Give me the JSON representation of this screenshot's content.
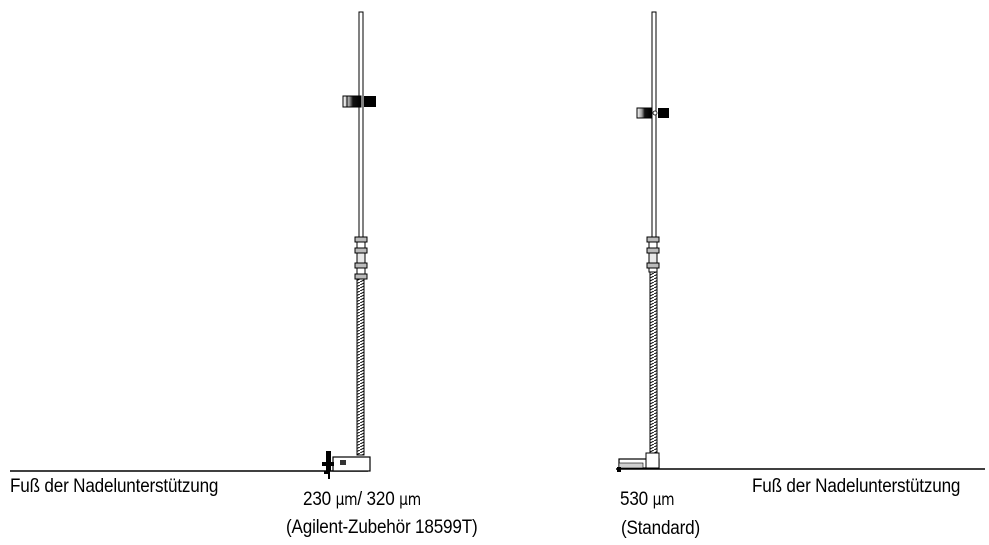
{
  "labels": {
    "left_base": "Fuß der Nadelunterstützung",
    "right_base": "Fuß der Nadelunterstützung",
    "left_size": {
      "value_a": "230",
      "unit_a": "µm",
      "separator": "/ ",
      "value_b": "320",
      "unit_b": "µm"
    },
    "left_note": "(Agilent-Zubehör 18599T)",
    "right_size": {
      "value": "530",
      "unit": "µm"
    },
    "right_note": "(Standard)"
  },
  "colors": {
    "line": "#000000",
    "background": "#ffffff",
    "metal_light": "#d8d8d8",
    "metal_dark": "#1a1a1a"
  }
}
